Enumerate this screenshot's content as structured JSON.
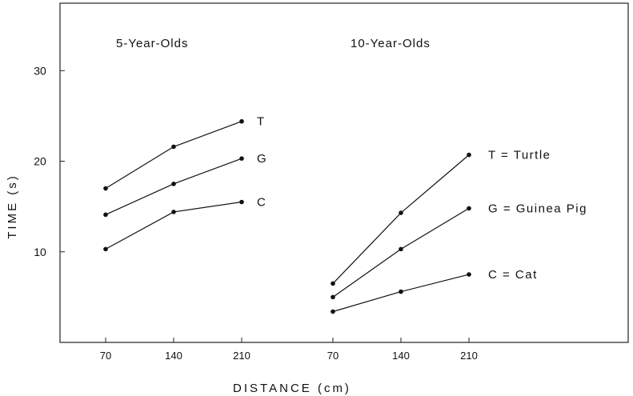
{
  "chart_data": {
    "type": "line",
    "ylabel": "TIME (s)",
    "xlabel": "DISTANCE (cm)",
    "ylim": [
      0,
      30
    ],
    "yticks": [
      10,
      20,
      30
    ],
    "grid": false,
    "legend": [
      "T = Turtle",
      "G = Guinea Pig",
      "C = Cat"
    ],
    "panels": [
      {
        "title": "5-Year-Olds",
        "x": [
          70,
          140,
          210
        ],
        "xtick_labels": [
          "70",
          "140",
          "210"
        ],
        "series": [
          {
            "name": "T",
            "values": [
              17.0,
              21.6,
              24.4
            ]
          },
          {
            "name": "G",
            "values": [
              14.1,
              17.5,
              20.3
            ]
          },
          {
            "name": "C",
            "values": [
              10.3,
              14.4,
              15.5
            ]
          }
        ]
      },
      {
        "title": "10-Year-Olds",
        "x": [
          70,
          140,
          210
        ],
        "xtick_labels": [
          "70",
          "140",
          "210"
        ],
        "series": [
          {
            "name": "T = Turtle",
            "values": [
              6.5,
              14.3,
              20.7
            ]
          },
          {
            "name": "G = Guinea Pig",
            "values": [
              5.0,
              10.3,
              14.8
            ]
          },
          {
            "name": "C = Cat",
            "values": [
              3.4,
              5.6,
              7.5
            ]
          }
        ]
      }
    ]
  }
}
